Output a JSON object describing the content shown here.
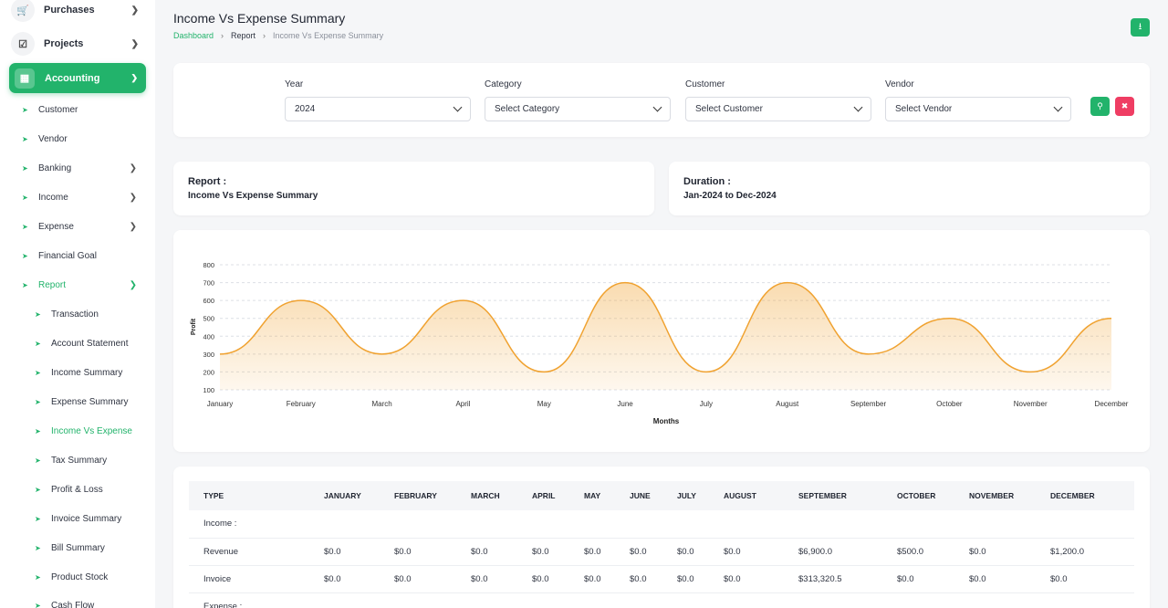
{
  "sidebar": {
    "top_items": [
      {
        "label": "Purchases",
        "icon": "cart-icon"
      },
      {
        "label": "Projects",
        "icon": "checkbox-icon"
      }
    ],
    "accounting": {
      "label": "Accounting",
      "icon": "grid-icon"
    },
    "sub_items": [
      {
        "label": "Customer"
      },
      {
        "label": "Vendor"
      },
      {
        "label": "Banking"
      },
      {
        "label": "Income"
      },
      {
        "label": "Expense"
      },
      {
        "label": "Financial Goal"
      },
      {
        "label": "Report"
      }
    ],
    "report_items": [
      {
        "label": "Transaction"
      },
      {
        "label": "Account Statement"
      },
      {
        "label": "Income Summary"
      },
      {
        "label": "Expense Summary"
      },
      {
        "label": "Income Vs Expense"
      },
      {
        "label": "Tax Summary"
      },
      {
        "label": "Profit & Loss"
      },
      {
        "label": "Invoice Summary"
      },
      {
        "label": "Bill Summary"
      },
      {
        "label": "Product Stock"
      },
      {
        "label": "Cash Flow"
      }
    ]
  },
  "header": {
    "title": "Income Vs Expense Summary",
    "breadcrumb": [
      "Dashboard",
      "Report",
      "Income Vs Expense Summary"
    ]
  },
  "filters": {
    "year": {
      "label": "Year",
      "value": "2024"
    },
    "category": {
      "label": "Category",
      "value": "Select Category"
    },
    "customer": {
      "label": "Customer",
      "value": "Select Customer"
    },
    "vendor": {
      "label": "Vendor",
      "value": "Select Vendor"
    }
  },
  "info": {
    "report_label": "Report :",
    "report_value": "Income Vs Expense Summary",
    "duration_label": "Duration :",
    "duration_value": "Jan-2024 to Dec-2024"
  },
  "colors": {
    "accent": "#22b36b",
    "danger": "#ef3d63",
    "series": "#f0a230"
  },
  "chart_data": {
    "type": "area",
    "categories": [
      "January",
      "February",
      "March",
      "April",
      "May",
      "June",
      "July",
      "August",
      "September",
      "October",
      "November",
      "December"
    ],
    "values": [
      300,
      600,
      300,
      600,
      200,
      700,
      200,
      700,
      300,
      500,
      200,
      500
    ],
    "xlabel": "Months",
    "ylabel": "Profit",
    "ylim": [
      100,
      800
    ],
    "yticks": [
      100,
      200,
      300,
      400,
      500,
      600,
      700,
      800
    ],
    "grid": true
  },
  "table": {
    "headers": [
      "TYPE",
      "JANUARY",
      "FEBRUARY",
      "MARCH",
      "APRIL",
      "MAY",
      "JUNE",
      "JULY",
      "AUGUST",
      "SEPTEMBER",
      "OCTOBER",
      "NOVEMBER",
      "DECEMBER"
    ],
    "rows": [
      {
        "section": "Income :"
      },
      {
        "cells": [
          "Revenue",
          "$0.0",
          "$0.0",
          "$0.0",
          "$0.0",
          "$0.0",
          "$0.0",
          "$0.0",
          "$0.0",
          "$6,900.0",
          "$500.0",
          "$0.0",
          "$1,200.0"
        ]
      },
      {
        "cells": [
          "Invoice",
          "$0.0",
          "$0.0",
          "$0.0",
          "$0.0",
          "$0.0",
          "$0.0",
          "$0.0",
          "$0.0",
          "$313,320.5",
          "$0.0",
          "$0.0",
          "$0.0"
        ]
      },
      {
        "section": "Expense :"
      }
    ]
  }
}
